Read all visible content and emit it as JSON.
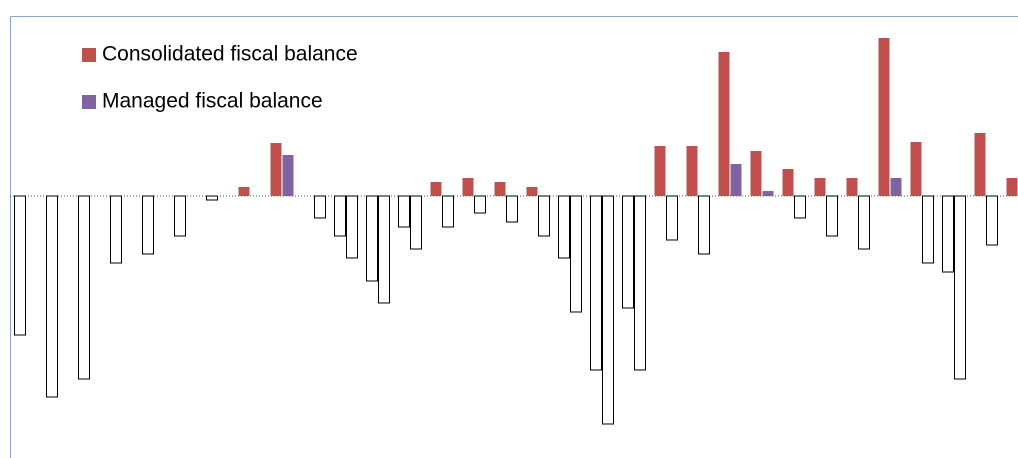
{
  "chart_data": {
    "type": "bar",
    "categories": [
      null,
      null,
      null,
      null,
      null,
      null,
      null,
      null,
      null,
      null,
      null,
      null,
      null,
      null,
      null,
      null,
      null,
      null,
      null,
      null,
      null,
      null,
      null,
      null,
      null,
      null,
      null,
      null,
      null,
      null,
      null,
      null
    ],
    "series": [
      {
        "name": "Consolidated fiscal balance",
        "color": "#c0504d",
        "values": [
          -13.9,
          -20.1,
          -18.3,
          -6.7,
          -5.8,
          -4.0,
          -0.4,
          0.9,
          5.3,
          0,
          -4.0,
          -8.5,
          -3.1,
          1.4,
          1.8,
          1.4,
          0.9,
          -6.2,
          -17.4,
          -11.2,
          5.0,
          5.0,
          14.4,
          4.5,
          2.7,
          1.8,
          1.8,
          15.8,
          5.4,
          -7.6,
          6.3,
          1.8
        ]
      },
      {
        "name": "Managed fiscal balance",
        "color": "#8064a2",
        "values": [
          0,
          0,
          0,
          0,
          0,
          0,
          0,
          0,
          4.1,
          -2.2,
          -6.2,
          -10.7,
          -5.3,
          -3.1,
          -1.7,
          -2.6,
          -4.0,
          -11.6,
          -22.8,
          -17.4,
          -4.4,
          -5.8,
          3.2,
          0.5,
          -2.2,
          -4.0,
          -5.3,
          1.8,
          -6.7,
          -18.3,
          -4.9,
          -8.9
        ]
      }
    ],
    "negative_color": "#ffffff",
    "ylim": [
      -26.2,
      18
    ],
    "legend": "top-left"
  }
}
